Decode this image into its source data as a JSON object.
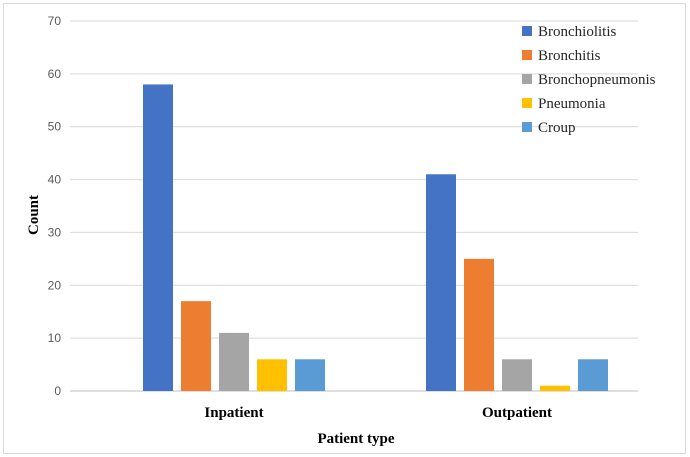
{
  "chart_data": {
    "type": "bar",
    "title": "",
    "xlabel": "Patient type",
    "ylabel": "Count",
    "ylim": [
      0,
      70
    ],
    "yticks": [
      "0",
      "10",
      "20",
      "30",
      "40",
      "50",
      "60",
      "70"
    ],
    "grid": true,
    "legend_position": "top-right",
    "categories": [
      "Inpatient",
      "Outpatient"
    ],
    "series": [
      {
        "name": "Bronchiolitis",
        "color": "#4472C4",
        "values": [
          58,
          41
        ]
      },
      {
        "name": "Bronchitis",
        "color": "#ED7D31",
        "values": [
          17,
          25
        ]
      },
      {
        "name": "Bronchopneumonis",
        "color": "#A5A5A5",
        "values": [
          11,
          6
        ]
      },
      {
        "name": "Pneumonia",
        "color": "#FFC000",
        "values": [
          6,
          1
        ]
      },
      {
        "name": "Croup",
        "color": "#5B9BD5",
        "values": [
          6,
          6
        ]
      }
    ]
  }
}
